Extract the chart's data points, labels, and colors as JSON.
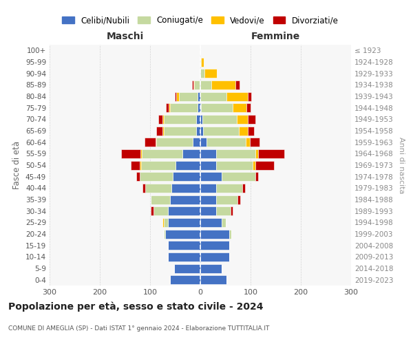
{
  "age_groups": [
    "0-4",
    "5-9",
    "10-14",
    "15-19",
    "20-24",
    "25-29",
    "30-34",
    "35-39",
    "40-44",
    "45-49",
    "50-54",
    "55-59",
    "60-64",
    "65-69",
    "70-74",
    "75-79",
    "80-84",
    "85-89",
    "90-94",
    "95-99",
    "100+"
  ],
  "birth_years": [
    "2019-2023",
    "2014-2018",
    "2009-2013",
    "2004-2008",
    "1999-2003",
    "1994-1998",
    "1989-1993",
    "1984-1988",
    "1979-1983",
    "1974-1978",
    "1969-1973",
    "1964-1968",
    "1959-1963",
    "1954-1958",
    "1949-1953",
    "1944-1948",
    "1939-1943",
    "1934-1938",
    "1929-1933",
    "1924-1928",
    "≤ 1923"
  ],
  "maschi": {
    "celibi": [
      60,
      52,
      65,
      65,
      70,
      65,
      65,
      60,
      58,
      55,
      50,
      35,
      15,
      8,
      8,
      5,
      5,
      2,
      0,
      0,
      0
    ],
    "coniugati": [
      0,
      0,
      0,
      0,
      3,
      8,
      28,
      38,
      52,
      65,
      68,
      82,
      72,
      65,
      65,
      55,
      38,
      10,
      2,
      0,
      0
    ],
    "vedovi": [
      0,
      0,
      0,
      0,
      0,
      2,
      0,
      0,
      0,
      0,
      2,
      2,
      2,
      2,
      3,
      3,
      5,
      2,
      0,
      0,
      0
    ],
    "divorziati": [
      0,
      0,
      0,
      0,
      0,
      0,
      5,
      0,
      5,
      8,
      18,
      38,
      22,
      12,
      8,
      5,
      2,
      3,
      0,
      0,
      0
    ]
  },
  "femmine": {
    "nubili": [
      52,
      42,
      58,
      58,
      58,
      42,
      32,
      32,
      32,
      42,
      32,
      32,
      12,
      5,
      4,
      2,
      0,
      0,
      0,
      0,
      0
    ],
    "coniugate": [
      0,
      0,
      0,
      0,
      3,
      8,
      28,
      42,
      52,
      68,
      72,
      78,
      78,
      72,
      68,
      62,
      52,
      22,
      8,
      2,
      0
    ],
    "vedove": [
      0,
      0,
      0,
      0,
      0,
      0,
      0,
      0,
      0,
      0,
      5,
      5,
      8,
      18,
      22,
      28,
      42,
      48,
      25,
      5,
      0
    ],
    "divorziate": [
      0,
      0,
      0,
      0,
      0,
      0,
      5,
      5,
      5,
      5,
      38,
      52,
      20,
      12,
      15,
      8,
      8,
      8,
      0,
      0,
      0
    ]
  },
  "colors": {
    "celibi_nubili": "#4472c4",
    "coniugati": "#c5d9a0",
    "vedovi": "#ffc000",
    "divorziati": "#c00000"
  },
  "title": "Popolazione per età, sesso e stato civile - 2024",
  "subtitle": "COMUNE DI AMEGLIA (SP) - Dati ISTAT 1° gennaio 2024 - Elaborazione TUTTITALIA.IT",
  "xlabel_left": "Maschi",
  "xlabel_right": "Femmine",
  "ylabel_left": "Fasce di età",
  "ylabel_right": "Anni di nascita",
  "xlim": 300,
  "legend_labels": [
    "Celibi/Nubili",
    "Coniugati/e",
    "Vedovi/e",
    "Divorziati/e"
  ],
  "bg_color": "#ffffff",
  "plot_bg_color": "#f7f7f7",
  "grid_color": "#cccccc"
}
